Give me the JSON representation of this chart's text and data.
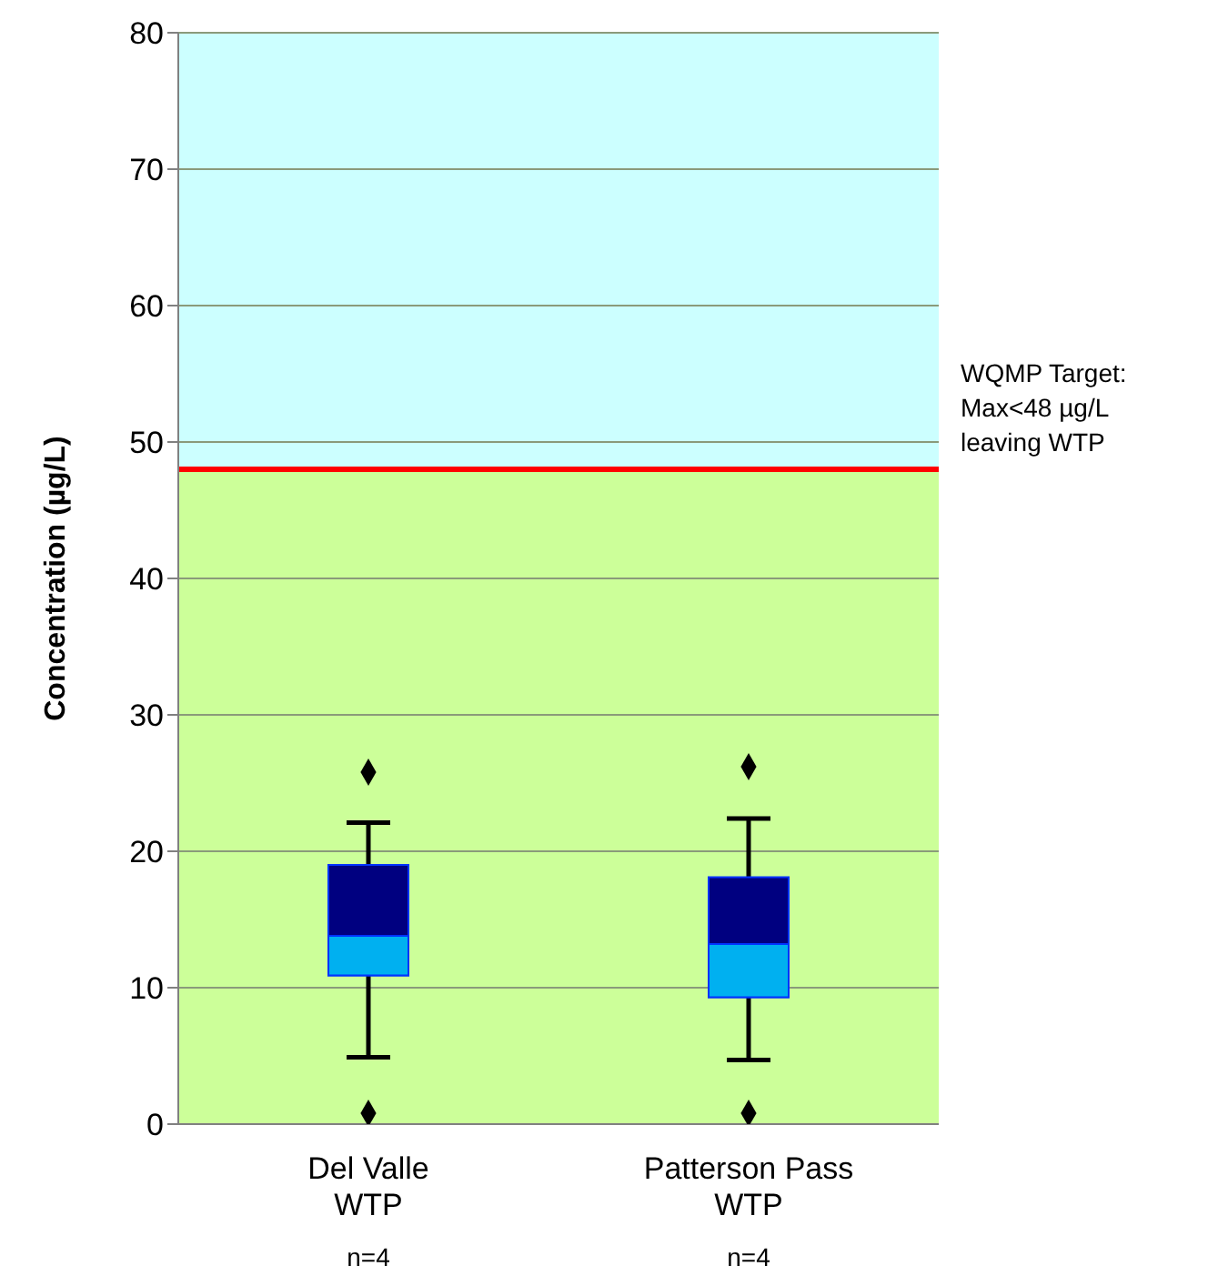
{
  "chart_data": {
    "type": "box",
    "ylabel": "Concentration (µg/L)",
    "categories": [
      "Del Valle\nWTP",
      "Patterson Pass\nWTP"
    ],
    "series": [
      {
        "colors": [
          "#00b0f0",
          "#000080"
        ],
        "boxes": [
          {
            "low": 4.9,
            "q1": 10.9,
            "median": 13.8,
            "q3": 19.0,
            "high": 22.1,
            "outliers": [
              25.8,
              0.8
            ]
          },
          {
            "low": 4.7,
            "q1": 9.3,
            "median": 13.2,
            "q3": 18.1,
            "high": 22.4,
            "outliers": [
              26.2,
              0.8
            ]
          }
        ]
      }
    ],
    "marker": "diamond",
    "ylim": [
      0,
      80
    ],
    "yticks": [
      0,
      10,
      20,
      30,
      40,
      50,
      60,
      70,
      80
    ],
    "grid": "y",
    "bands": [
      {
        "axis": "y",
        "from": 48,
        "to": 80,
        "color": "#ccffff"
      },
      {
        "axis": "y",
        "from": 0,
        "to": 48,
        "color": "#ccff99"
      }
    ],
    "ref_lines": [
      {
        "axis": "y",
        "value": 48,
        "label": "WQMP Target:\nMax<48 µg/L\nleaving WTP",
        "color": "#ff0000"
      }
    ],
    "annotations": [
      "n=4",
      "n=4"
    ]
  }
}
